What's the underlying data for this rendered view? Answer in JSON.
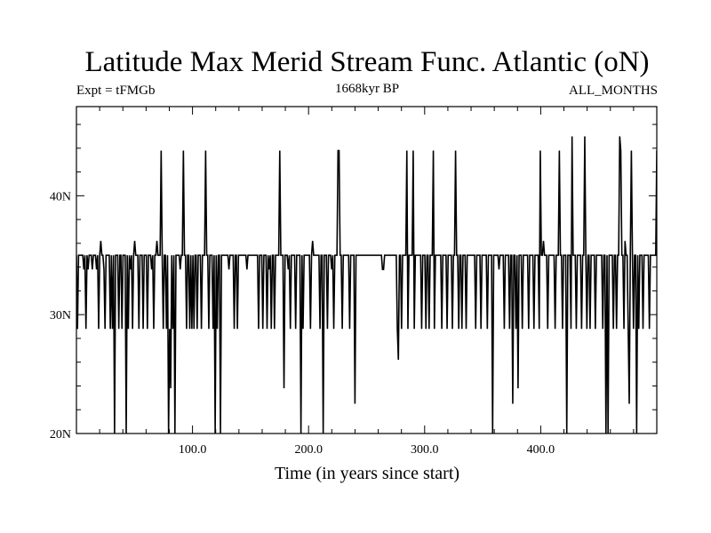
{
  "chart_data": {
    "type": "line",
    "title": "Latitude Max Merid Stream Func. Atlantic (oN)",
    "subtitle_left": "Expt = tFMGb",
    "subtitle_center": "1668kyr BP",
    "subtitle_right": "ALL_MONTHS",
    "xlabel": "Time (in years since start)",
    "ylabel": "",
    "xlim": [
      0,
      500
    ],
    "ylim": [
      20,
      47.5
    ],
    "x_ticks": [
      {
        "value": 100,
        "label": "100.0"
      },
      {
        "value": 200,
        "label": "200.0"
      },
      {
        "value": 300,
        "label": "300.0"
      },
      {
        "value": 400,
        "label": "400.0"
      }
    ],
    "y_ticks": [
      {
        "value": 20,
        "label": "20N"
      },
      {
        "value": 30,
        "label": "30N"
      },
      {
        "value": 40,
        "label": "40N"
      }
    ],
    "grid": false,
    "series": [
      {
        "color": "#000000",
        "y": [
          35,
          28.8,
          35,
          35,
          35,
          35,
          35,
          33.8,
          35,
          28.8,
          35,
          33.8,
          35,
          35,
          35,
          33.8,
          35,
          35,
          35,
          33.8,
          35,
          28.8,
          35,
          36.2,
          35,
          35,
          33.8,
          28.8,
          35,
          35,
          35,
          35,
          28.8,
          35,
          28.8,
          35,
          20,
          35,
          35,
          35,
          28.8,
          35,
          35,
          28.8,
          35,
          35,
          35,
          20,
          35,
          28.8,
          35,
          33.8,
          35,
          28.8,
          35,
          36.2,
          35,
          35,
          35,
          28.8,
          35,
          35,
          35,
          28.8,
          35,
          35,
          35,
          28.8,
          35,
          35,
          35,
          33.8,
          35,
          28.8,
          35,
          35,
          36.2,
          35,
          35,
          35,
          43.8,
          35,
          28.8,
          35,
          35,
          28.8,
          35,
          20,
          28.8,
          23.8,
          35,
          28.8,
          35,
          20,
          35,
          35,
          35,
          35,
          33.8,
          35,
          35,
          43.8,
          35,
          35,
          28.8,
          35,
          35,
          28.8,
          35,
          28.8,
          35,
          28.8,
          35,
          35,
          28.8,
          35,
          35,
          35,
          28.8,
          35,
          35,
          35,
          43.8,
          35,
          35,
          28.8,
          35,
          35,
          35,
          28.8,
          35,
          20,
          35,
          28.8,
          35,
          35,
          20,
          35,
          35,
          35,
          35,
          35,
          35,
          35,
          33.8,
          35,
          35,
          35,
          35,
          28.8,
          35,
          35,
          28.8,
          35,
          35,
          35,
          35,
          35,
          35,
          35,
          35,
          33.8,
          35,
          35,
          35,
          35,
          35,
          35,
          35,
          35,
          35,
          35,
          28.8,
          35,
          35,
          35,
          28.8,
          35,
          35,
          35,
          28.8,
          35,
          33.8,
          35,
          28.8,
          35,
          35,
          28.8,
          35,
          35,
          35,
          35,
          43.8,
          35,
          35,
          35,
          23.8,
          35,
          35,
          35,
          33.8,
          35,
          28.8,
          35,
          35,
          35,
          35,
          28.8,
          35,
          35,
          35,
          35,
          20,
          35,
          28.8,
          35,
          35,
          35,
          35,
          35,
          35,
          28.8,
          35,
          36.2,
          35,
          35,
          35,
          35,
          35,
          35,
          28.8,
          35,
          35,
          20,
          35,
          35,
          35,
          28.8,
          35,
          35,
          35,
          33.8,
          35,
          28.8,
          35,
          35,
          35,
          43.8,
          43.8,
          35,
          35,
          28.8,
          35,
          35,
          35,
          35,
          35,
          35,
          28.8,
          35,
          35,
          35,
          35,
          22.5,
          35,
          35,
          35,
          35,
          35,
          35,
          35,
          35,
          35,
          35,
          35,
          35,
          35,
          35,
          35,
          35,
          35,
          35,
          35,
          35,
          35,
          35,
          35,
          35,
          35,
          33.8,
          33.8,
          35,
          35,
          35,
          35,
          35,
          35,
          35,
          35,
          35,
          35,
          35,
          35,
          28.8,
          26.2,
          35,
          35,
          28.8,
          35,
          35,
          35,
          35,
          43.8,
          28.8,
          35,
          35,
          35,
          35,
          43.8,
          28.8,
          35,
          35,
          35,
          35,
          35,
          35,
          28.8,
          35,
          35,
          35,
          28.8,
          35,
          35,
          28.8,
          35,
          35,
          35,
          43.8,
          28.8,
          35,
          35,
          35,
          35,
          35,
          35,
          28.8,
          35,
          35,
          35,
          35,
          28.8,
          35,
          35,
          35,
          35,
          28.8,
          35,
          35,
          43.8,
          35,
          35,
          28.8,
          35,
          35,
          28.8,
          35,
          35,
          35,
          28.8,
          35,
          35,
          35,
          35,
          35,
          35,
          35,
          35,
          28.8,
          35,
          35,
          35,
          35,
          28.8,
          35,
          35,
          35,
          35,
          35,
          28.8,
          35,
          35,
          35,
          35,
          20,
          35,
          35,
          35,
          35,
          35,
          33.8,
          35,
          35,
          35,
          35,
          28.8,
          35,
          35,
          35,
          35,
          28.8,
          35,
          35,
          22.5,
          35,
          35,
          28.8,
          35,
          23.8,
          35,
          35,
          35,
          28.8,
          35,
          35,
          35,
          35,
          35,
          28.8,
          35,
          35,
          35,
          35,
          28.8,
          35,
          35,
          35,
          35,
          28.8,
          43.8,
          35,
          35,
          36.2,
          35,
          35,
          35,
          28.8,
          35,
          35,
          35,
          35,
          35,
          35,
          28.8,
          35,
          35,
          35,
          43.8,
          35,
          35,
          28.8,
          35,
          35,
          35,
          20,
          35,
          35,
          35,
          28.8,
          45,
          35,
          35,
          35,
          28.8,
          35,
          35,
          35,
          35,
          28.8,
          35,
          35,
          45,
          35,
          28.8,
          35,
          35,
          28.8,
          35,
          35,
          35,
          35,
          28.8,
          35,
          35,
          35,
          35,
          35,
          35,
          28.8,
          35,
          35,
          20,
          35,
          20,
          35,
          35,
          35,
          35,
          28.8,
          35,
          35,
          28.8,
          35,
          35,
          45,
          43.8,
          35,
          35,
          28.8,
          36.2,
          35,
          35,
          28.8,
          22.5,
          35,
          43.8,
          35,
          28.8,
          35,
          35,
          20,
          35,
          28.8,
          35,
          35,
          35,
          28.8,
          35,
          35,
          35,
          35,
          35,
          28.8,
          35,
          35,
          35,
          35,
          35,
          35,
          43.8
        ]
      }
    ]
  }
}
